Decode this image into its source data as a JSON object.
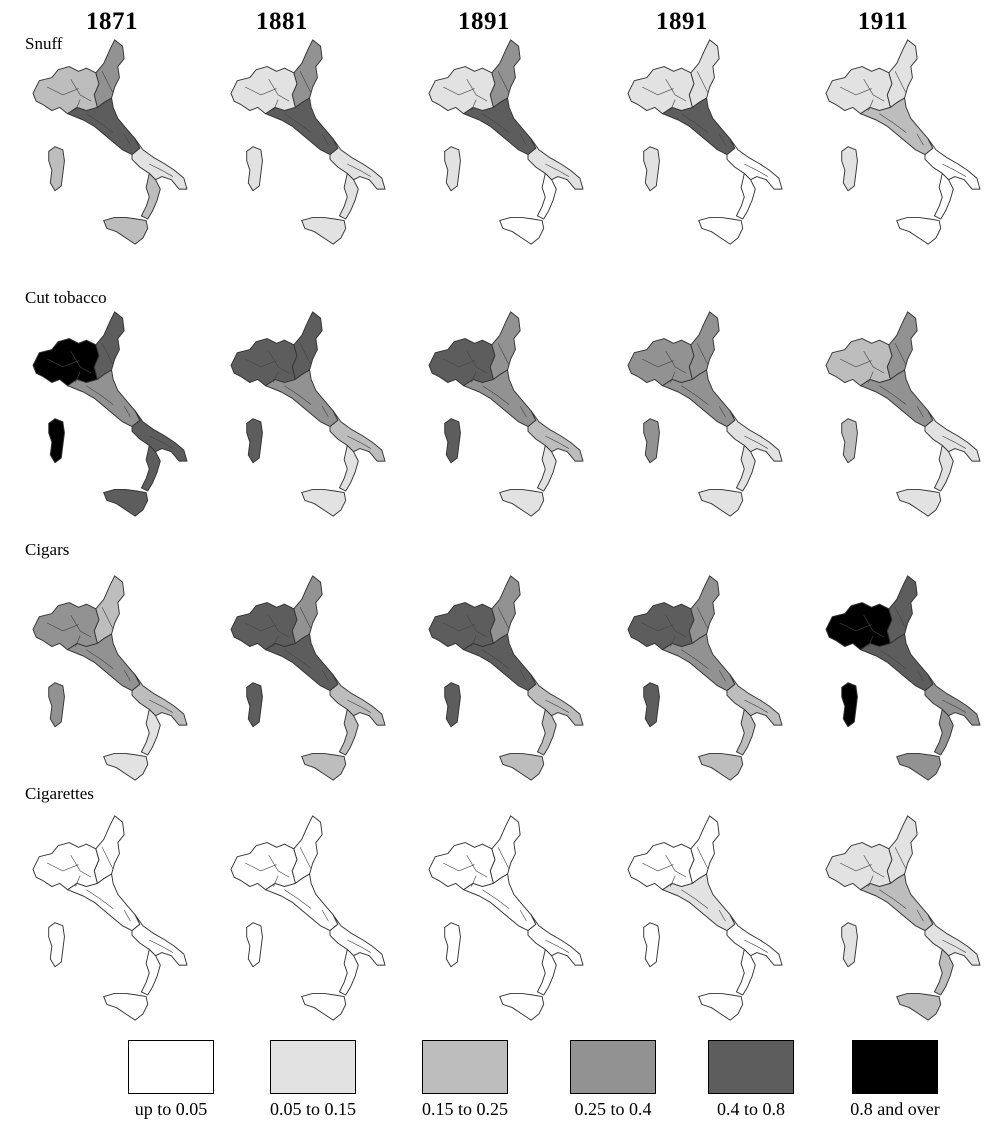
{
  "years": [
    "1871",
    "1881",
    "1891",
    "1891",
    "1911"
  ],
  "rows": [
    {
      "label": "Snuff",
      "levels": [
        [
          2,
          3,
          4,
          1,
          2
        ],
        [
          1,
          3,
          4,
          1,
          1
        ],
        [
          1,
          3,
          4,
          1,
          0
        ],
        [
          1,
          1,
          4,
          0,
          0
        ],
        [
          1,
          1,
          2,
          0,
          0
        ]
      ]
    },
    {
      "label": "Cut tobacco",
      "levels": [
        [
          5,
          4,
          3,
          4,
          4
        ],
        [
          4,
          4,
          3,
          2,
          1
        ],
        [
          4,
          3,
          3,
          2,
          1
        ],
        [
          3,
          3,
          3,
          1,
          1
        ],
        [
          2,
          3,
          3,
          1,
          1
        ]
      ]
    },
    {
      "label": "Cigars",
      "levels": [
        [
          3,
          2,
          3,
          2,
          1
        ],
        [
          4,
          3,
          4,
          2,
          2
        ],
        [
          4,
          3,
          4,
          2,
          2
        ],
        [
          4,
          3,
          3,
          2,
          2
        ],
        [
          5,
          4,
          4,
          3,
          3
        ]
      ]
    },
    {
      "label": "Cigarettes",
      "levels": [
        [
          0,
          0,
          0,
          0,
          0
        ],
        [
          0,
          0,
          0,
          0,
          0
        ],
        [
          0,
          0,
          0,
          0,
          0
        ],
        [
          0,
          0,
          1,
          0,
          0
        ],
        [
          1,
          1,
          2,
          1,
          2
        ]
      ]
    }
  ],
  "legend": [
    {
      "label": "up to 0.05",
      "color": "#ffffff"
    },
    {
      "label": "0.05 to 0.15",
      "color": "#e2e2e2"
    },
    {
      "label": "0.15  to 0.25",
      "color": "#bdbdbd"
    },
    {
      "label": "0.25 to 0.4",
      "color": "#929292"
    },
    {
      "label": "0.4 to 0.8",
      "color": "#5d5d5d"
    },
    {
      "label": "0.8 and over",
      "color": "#000000"
    }
  ]
}
